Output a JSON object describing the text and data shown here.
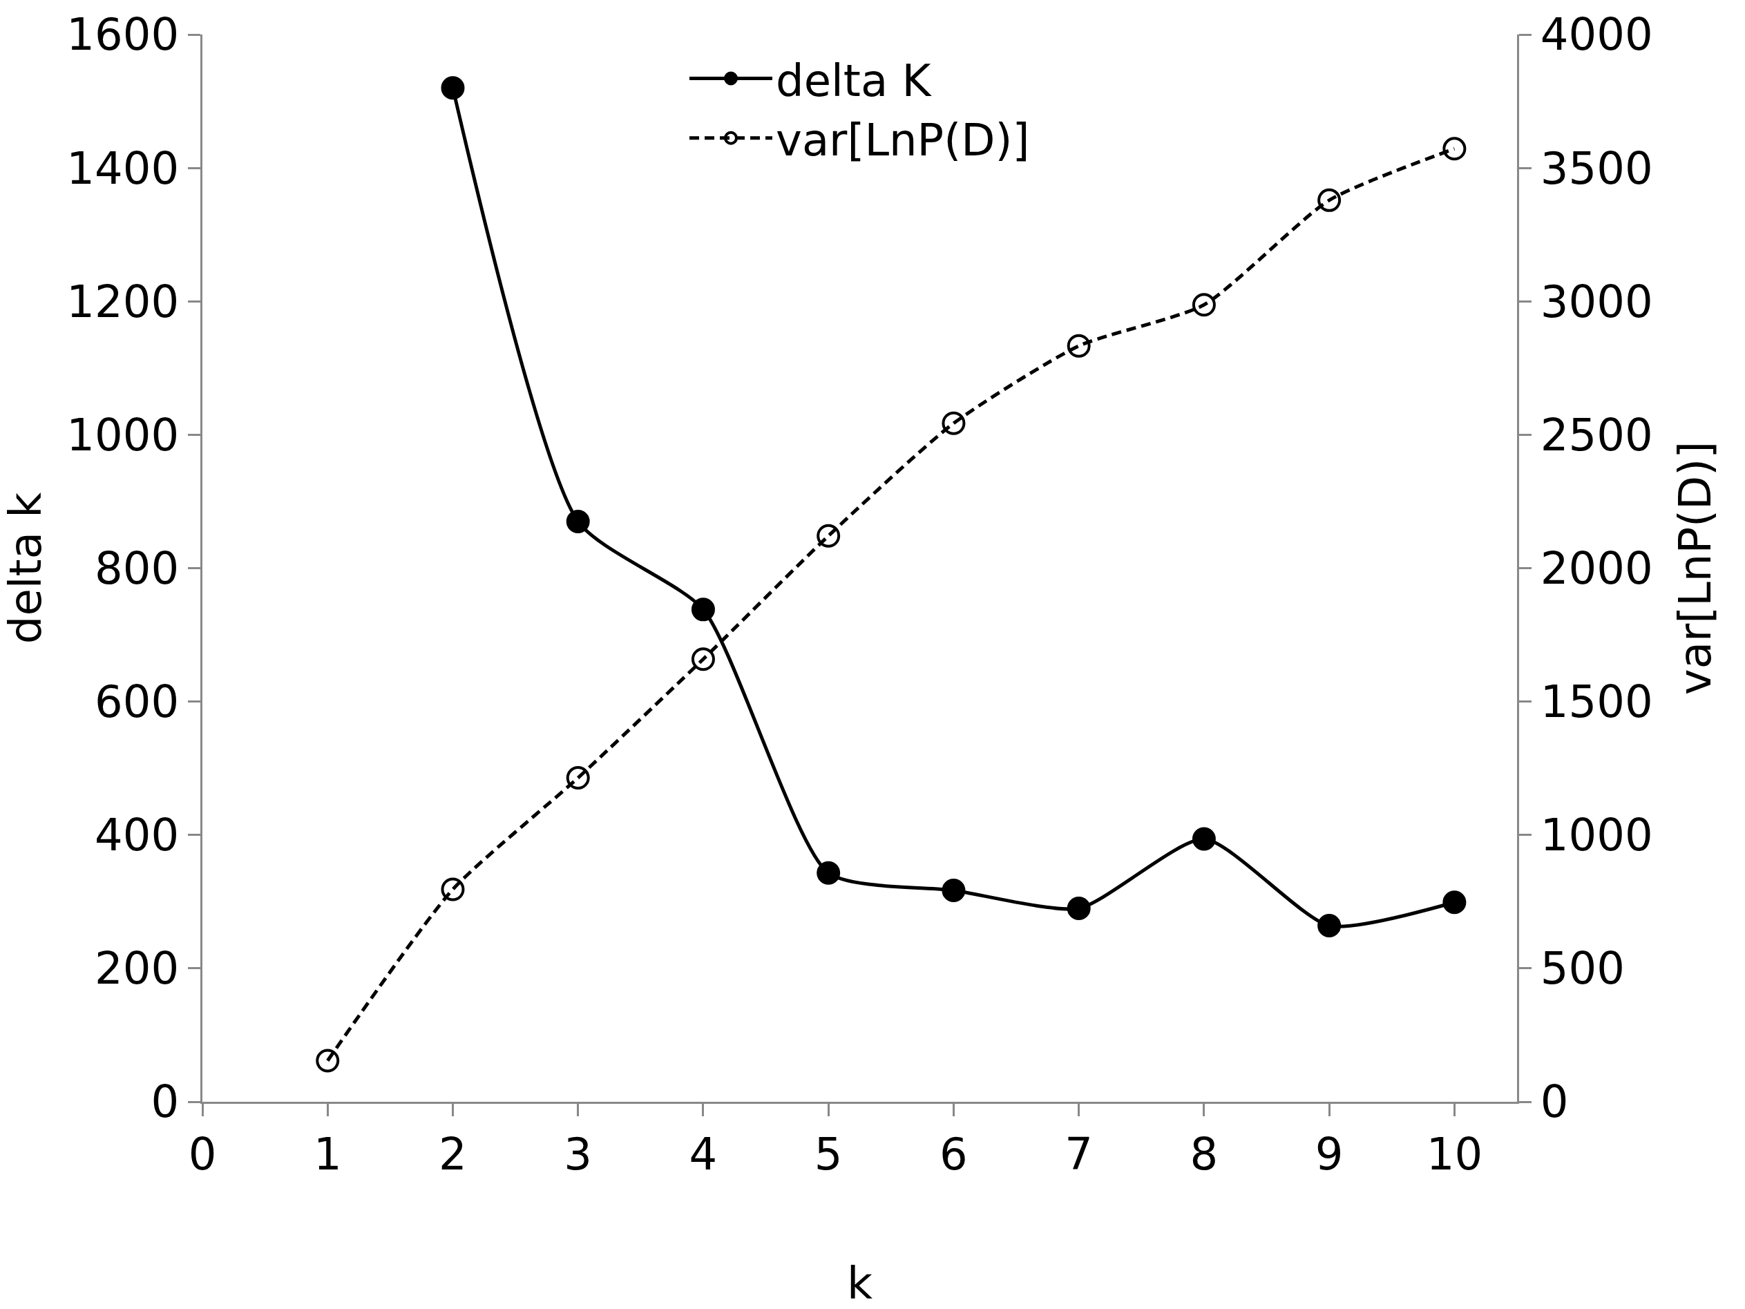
{
  "chart_data": {
    "type": "line",
    "xlabel": "k",
    "ylabel": "delta k",
    "y2label": "var[LnP(D)]",
    "xlim": [
      0,
      10.5
    ],
    "xticks": [
      0,
      1,
      2,
      3,
      4,
      5,
      6,
      7,
      8,
      9,
      10
    ],
    "ylim": [
      0,
      1600
    ],
    "yticks": [
      0,
      200,
      400,
      600,
      800,
      1000,
      1200,
      1400,
      1600
    ],
    "y2lim": [
      0,
      4000
    ],
    "y2ticks": [
      0,
      500,
      1000,
      1500,
      2000,
      2500,
      3000,
      3500,
      4000
    ],
    "grid": false,
    "legend": "top",
    "marker": "circle",
    "series": [
      {
        "name": "delta K",
        "color": "#000000",
        "x": [
          2,
          3,
          4,
          5,
          6,
          7,
          8,
          9,
          10
        ],
        "values": [
          1520,
          870,
          738,
          343,
          317,
          290,
          394,
          264,
          299
        ],
        "line_style": "solid"
      },
      {
        "name": "var[LnP(D)]",
        "color": "#000000",
        "axis": "y2",
        "x": [
          1,
          2,
          3,
          4,
          5,
          6,
          7,
          8,
          9,
          10
        ],
        "values": [
          154,
          796,
          1214,
          1659,
          2121,
          2543,
          2833,
          2987,
          3379,
          3572
        ],
        "line_style": "dashed"
      }
    ]
  }
}
